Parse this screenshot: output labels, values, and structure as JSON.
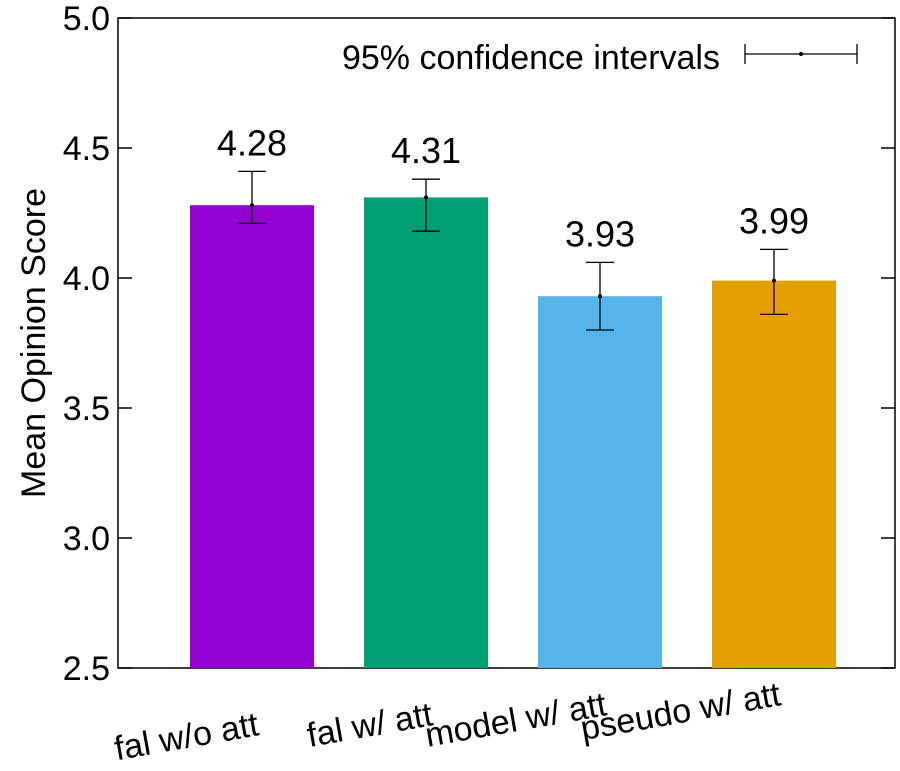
{
  "chart_data": {
    "type": "bar",
    "title": "",
    "xlabel": "",
    "ylabel": "Mean Opinion Score",
    "ylim": [
      2.5,
      5.0
    ],
    "yticks": [
      2.5,
      3.0,
      3.5,
      4.0,
      4.5,
      5.0
    ],
    "ytick_labels": [
      "2.5",
      "3.0",
      "3.5",
      "4.0",
      "4.5",
      "5.0"
    ],
    "categories": [
      "fal w/o att",
      "fal w/ att",
      "model w/ att",
      "pseudo w/ att"
    ],
    "values": [
      4.28,
      4.31,
      3.93,
      3.99
    ],
    "value_labels": [
      "4.28",
      "4.31",
      "3.93",
      "3.99"
    ],
    "error_low": [
      4.21,
      4.18,
      3.8,
      3.86
    ],
    "error_high": [
      4.41,
      4.38,
      4.06,
      4.11
    ],
    "colors": [
      "#9400d3",
      "#009e73",
      "#56b4e9",
      "#e69f00"
    ],
    "legend": {
      "label": "95% confidence intervals",
      "position": "top-right"
    },
    "grid": false
  }
}
